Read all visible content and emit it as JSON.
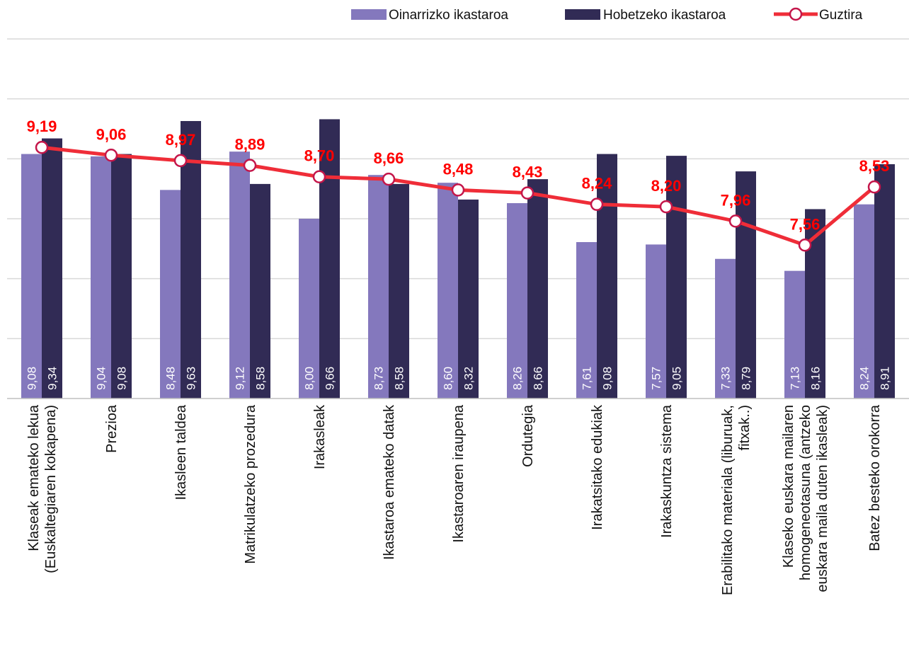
{
  "chart_data": {
    "type": "bar",
    "title": "",
    "xlabel": "",
    "ylabel": "",
    "ylim": [
      5,
      11
    ],
    "grid": true,
    "legend_position": "top-right",
    "categories": [
      [
        "Klaseak emateko lekua",
        "(Euskaltegiaren kokapena)"
      ],
      [
        "Prezioa"
      ],
      [
        "Ikasleen taldea"
      ],
      [
        "Matrikulatzeko prozedura"
      ],
      [
        "Irakasleak"
      ],
      [
        "Ikastaroa emateko datak"
      ],
      [
        "Ikastaroaren iraupena"
      ],
      [
        "Ordutegia"
      ],
      [
        "Irakatsitako edukiak"
      ],
      [
        "Irakaskuntza sistema"
      ],
      [
        "Erabilitako materiala (liburuak,",
        "fitxak..)"
      ],
      [
        "Klaseko euskara mailaren",
        "homogeneotasuna (antzeko",
        "euskara maila duten ikasleak)"
      ],
      [
        "Batez besteko orokorra"
      ]
    ],
    "series": [
      {
        "name": "Oinarrizko ikastaroa",
        "kind": "bar",
        "color": "#8478bd",
        "values": [
          9.08,
          9.04,
          8.48,
          9.12,
          8.0,
          8.73,
          8.6,
          8.26,
          7.61,
          7.57,
          7.33,
          7.13,
          8.24
        ],
        "labels": [
          "9,08",
          "9,04",
          "8,48",
          "9,12",
          "8,00",
          "8,73",
          "8,60",
          "8,26",
          "7,61",
          "7,57",
          "7,33",
          "7,13",
          "8,24"
        ]
      },
      {
        "name": "Hobetzeko ikastaroa",
        "kind": "bar",
        "color": "#312b55",
        "values": [
          9.34,
          9.08,
          9.63,
          8.58,
          9.66,
          8.58,
          8.32,
          8.66,
          9.08,
          9.05,
          8.79,
          8.16,
          8.91
        ],
        "labels": [
          "9,34",
          "9,08",
          "9,63",
          "8,58",
          "9,66",
          "8,58",
          "8,32",
          "8,66",
          "9,08",
          "9,05",
          "8,79",
          "8,16",
          "8,91"
        ]
      },
      {
        "name": "Guztira",
        "kind": "line",
        "color": "#ef2d38",
        "marker_stroke": "#c4164a",
        "label_color": "#ff0000",
        "values": [
          9.19,
          9.06,
          8.97,
          8.89,
          8.7,
          8.66,
          8.48,
          8.43,
          8.24,
          8.2,
          7.96,
          7.56,
          8.53
        ],
        "labels": [
          "9,19",
          "9,06",
          "8,97",
          "8,89",
          "8,70",
          "8,66",
          "8,48",
          "8,43",
          "8,24",
          "8,20",
          "7,96",
          "7,56",
          "8,53"
        ]
      }
    ]
  }
}
